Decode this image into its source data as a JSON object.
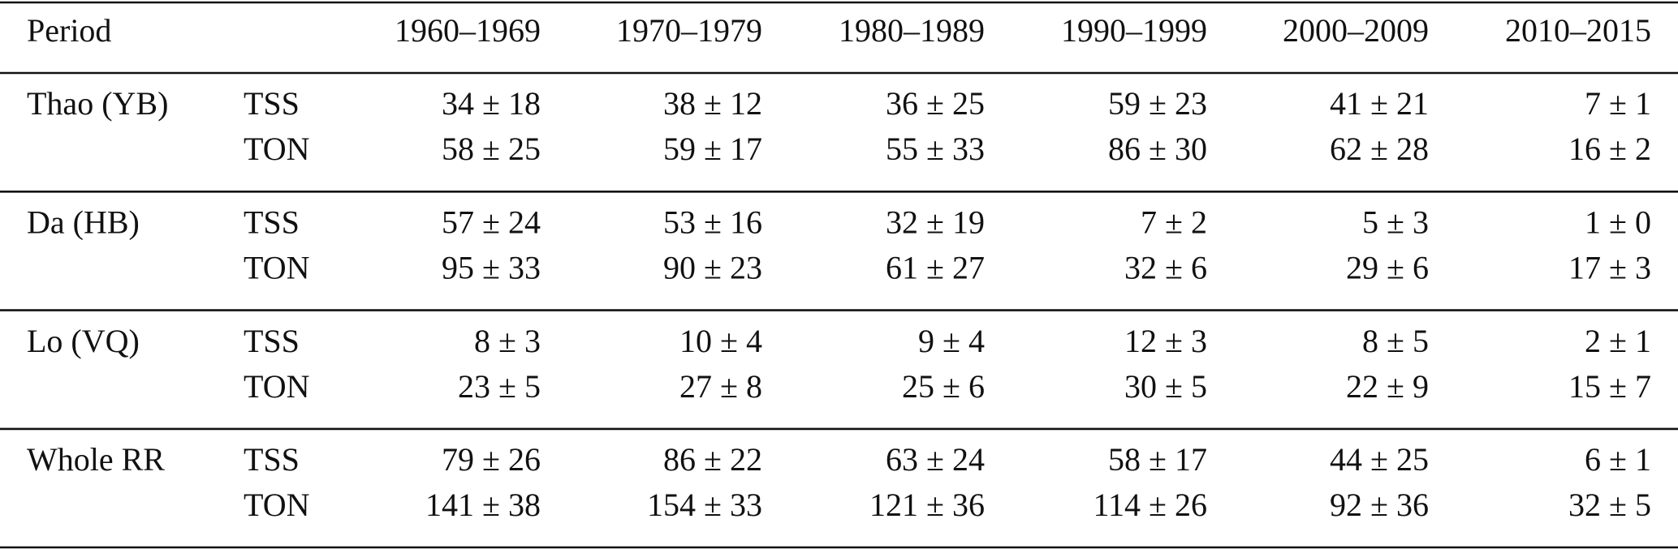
{
  "table": {
    "header": {
      "first": "Period",
      "periods": [
        "1960–1969",
        "1970–1979",
        "1980–1989",
        "1990–1999",
        "2000–2009",
        "2010–2015"
      ]
    },
    "groups": [
      {
        "name": "Thao (YB)",
        "rows": [
          {
            "label": "TSS",
            "cells": [
              "34 ± 18",
              "38 ± 12",
              "36 ± 25",
              "59 ± 23",
              "41 ± 21",
              "7 ± 1"
            ]
          },
          {
            "label": "TON",
            "cells": [
              "58 ± 25",
              "59 ± 17",
              "55 ± 33",
              "86 ± 30",
              "62 ± 28",
              "16 ± 2"
            ]
          }
        ]
      },
      {
        "name": "Da (HB)",
        "rows": [
          {
            "label": "TSS",
            "cells": [
              "57 ± 24",
              "53 ± 16",
              "32 ± 19",
              "7 ± 2",
              "5 ± 3",
              "1 ± 0"
            ]
          },
          {
            "label": "TON",
            "cells": [
              "95 ± 33",
              "90 ± 23",
              "61 ± 27",
              "32 ± 6",
              "29 ± 6",
              "17 ± 3"
            ]
          }
        ]
      },
      {
        "name": "Lo (VQ)",
        "rows": [
          {
            "label": "TSS",
            "cells": [
              "8 ± 3",
              "10 ± 4",
              "9 ± 4",
              "12 ± 3",
              "8 ± 5",
              "2 ± 1"
            ]
          },
          {
            "label": "TON",
            "cells": [
              "23 ± 5",
              "27 ± 8",
              "25 ± 6",
              "30 ± 5",
              "22 ± 9",
              "15 ± 7"
            ]
          }
        ]
      },
      {
        "name": "Whole RR",
        "rows": [
          {
            "label": "TSS",
            "cells": [
              "79 ± 26",
              "86 ± 22",
              "63 ± 24",
              "58 ± 17",
              "44 ± 25",
              "6 ± 1"
            ]
          },
          {
            "label": "TON",
            "cells": [
              "141 ± 38",
              "154 ± 33",
              "121 ± 36",
              "114 ± 26",
              "92 ± 36",
              "32 ± 5"
            ]
          }
        ]
      }
    ]
  }
}
